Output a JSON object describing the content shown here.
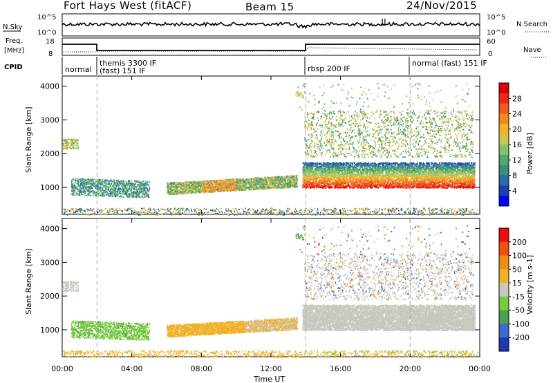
{
  "header": {
    "station": "Fort Hays West (fitACF)",
    "beam": "Beam 15",
    "date": "24/Nov/2015"
  },
  "top_panels": {
    "nsky_label": "N.Sky",
    "nsky_ticks": [
      "10^5",
      "10^0"
    ],
    "nsearch_label": "N.Search",
    "nsearch_ticks": [
      "10^5",
      "10^0"
    ],
    "freq_label_1": "Freq.",
    "freq_label_2": "[MHz]",
    "freq_ticks": [
      "18",
      "8"
    ],
    "nave_label": "Nave",
    "nave_ticks": [
      "60",
      "0"
    ],
    "cpid_label": "CPID",
    "modes": [
      "normal",
      "themis 3300 IF",
      "(fast) 151 IF",
      "rbsp 200 IF",
      "normal (fast) 151 IF"
    ]
  },
  "chart_data": [
    {
      "type": "heatmap",
      "panel": "power",
      "xlabel": "",
      "ylabel": "Slant Range [km]",
      "xlim": [
        0,
        24
      ],
      "ylim": [
        200,
        4300
      ],
      "yticks": [
        "1000",
        "2000",
        "3000",
        "4000"
      ],
      "colorbar_label": "Power [dB]",
      "colorbar_ticks": [
        "28",
        "24",
        "20",
        "16",
        "12",
        "8",
        "4"
      ],
      "colorbar_colors": [
        "#0000ff",
        "#1a3fb0",
        "#2a6aa8",
        "#3c8c7a",
        "#55a86c",
        "#86c069",
        "#c8c84f",
        "#f2b12c",
        "#f28a22",
        "#ef5a1e",
        "#e82a1a",
        "#e00000"
      ],
      "mode_boundaries_hours": [
        2,
        14,
        20
      ]
    },
    {
      "type": "heatmap",
      "panel": "velocity",
      "xlabel": "Time UT",
      "ylabel": "Slant Range [km]",
      "xlim": [
        0,
        24
      ],
      "ylim": [
        200,
        4300
      ],
      "xticks": [
        "00:00",
        "04:00",
        "08:00",
        "12:00",
        "16:00",
        "20:00",
        "00:00"
      ],
      "yticks": [
        "1000",
        "2000",
        "3000",
        "4000"
      ],
      "colorbar_label": "Velocity [m s-1]",
      "colorbar_ticks": [
        "200",
        "100",
        "50",
        "15",
        "-15",
        "-50",
        "-100",
        "-200"
      ],
      "colorbar_colors": [
        "#2038b0",
        "#3c6cd0",
        "#4aa050",
        "#7acc3c",
        "#c8c8c0",
        "#f0b028",
        "#f08a18",
        "#f05010",
        "#e81010"
      ],
      "mode_boundaries_hours": [
        2,
        14,
        20
      ]
    }
  ]
}
